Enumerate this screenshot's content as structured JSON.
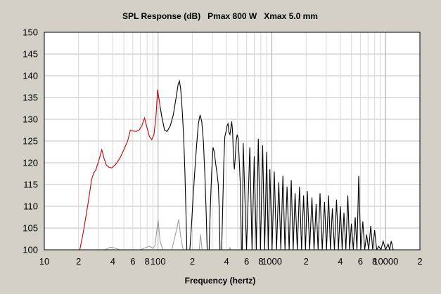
{
  "chart_data": {
    "type": "line",
    "title": "SPL Response (dB)   Pmax 800 W   Xmax 5.0 mm",
    "xlabel": "Frequency (hertz)",
    "ylabel": "",
    "x_scale": "log",
    "xlim": [
      10,
      20000
    ],
    "ylim": [
      100,
      150
    ],
    "grid": true,
    "legend": "none",
    "yticks": [
      100,
      105,
      110,
      115,
      120,
      125,
      130,
      135,
      140,
      145,
      150
    ],
    "xtick_labels": [
      {
        "value": 10,
        "label": "10"
      },
      {
        "value": 20,
        "label": "2"
      },
      {
        "value": 40,
        "label": "4"
      },
      {
        "value": 60,
        "label": "6"
      },
      {
        "value": 80,
        "label": "8"
      },
      {
        "value": 100,
        "label": "100"
      },
      {
        "value": 200,
        "label": "2"
      },
      {
        "value": 400,
        "label": "4"
      },
      {
        "value": 600,
        "label": "6"
      },
      {
        "value": 800,
        "label": "8"
      },
      {
        "value": 1000,
        "label": "1000"
      },
      {
        "value": 2000,
        "label": "2"
      },
      {
        "value": 4000,
        "label": "4"
      },
      {
        "value": 6000,
        "label": "6"
      },
      {
        "value": 8000,
        "label": "8"
      },
      {
        "value": 10000,
        "label": "10000"
      },
      {
        "value": 20000,
        "label": "2"
      }
    ],
    "series": [
      {
        "color": "#cc0000",
        "points": [
          [
            20.5,
            100
          ],
          [
            22,
            104
          ],
          [
            24,
            110
          ],
          [
            26,
            116
          ],
          [
            27,
            117.5
          ],
          [
            28.5,
            118.5
          ],
          [
            30.5,
            121
          ],
          [
            32,
            123
          ],
          [
            33.5,
            121
          ],
          [
            35,
            119.5
          ],
          [
            37,
            119
          ],
          [
            39,
            118.8
          ],
          [
            42,
            119.5
          ],
          [
            46,
            121
          ],
          [
            50,
            123
          ],
          [
            54,
            125
          ],
          [
            57,
            127.5
          ],
          [
            60,
            127.3
          ],
          [
            64,
            127.2
          ],
          [
            68,
            127.5
          ],
          [
            72,
            128.5
          ],
          [
            76,
            130.3
          ],
          [
            80,
            128
          ],
          [
            84,
            126
          ],
          [
            88,
            125.3
          ],
          [
            92,
            126.5
          ],
          [
            96,
            131
          ],
          [
            99,
            136.8
          ],
          [
            101,
            135.3
          ],
          [
            104,
            133
          ]
        ]
      },
      {
        "color": "#000000",
        "points": [
          [
            104,
            133
          ],
          [
            108,
            130.5
          ],
          [
            114,
            127.5
          ],
          [
            120,
            127.2
          ],
          [
            128,
            128.5
          ],
          [
            136,
            131
          ],
          [
            144,
            135
          ],
          [
            150,
            138
          ],
          [
            154,
            138.8
          ],
          [
            158,
            137
          ],
          [
            163,
            132
          ],
          [
            168,
            125.5
          ],
          [
            172,
            118
          ],
          [
            176,
            108
          ],
          [
            179,
            100
          ],
          [
            190,
            100
          ],
          [
            197,
            106
          ],
          [
            203,
            112
          ],
          [
            210,
            118
          ],
          [
            218,
            124
          ],
          [
            226,
            129
          ],
          [
            234,
            131
          ],
          [
            242,
            129.5
          ],
          [
            250,
            125
          ],
          [
            258,
            117
          ],
          [
            265,
            108
          ],
          [
            270,
            100
          ],
          [
            281,
            100
          ],
          [
            288,
            110
          ],
          [
            296,
            118
          ],
          [
            304,
            123.5
          ],
          [
            312,
            122.5
          ],
          [
            320,
            120
          ],
          [
            330,
            117.5
          ],
          [
            338,
            115
          ],
          [
            344,
            110
          ],
          [
            350,
            100
          ],
          [
            362,
            100
          ],
          [
            370,
            110
          ],
          [
            378,
            120
          ],
          [
            386,
            126
          ],
          [
            394,
            127
          ],
          [
            404,
            128.5
          ],
          [
            412,
            129
          ],
          [
            420,
            127
          ],
          [
            428,
            126.5
          ],
          [
            436,
            128
          ],
          [
            444,
            129.5
          ],
          [
            452,
            127
          ],
          [
            460,
            121
          ],
          [
            468,
            118.5
          ],
          [
            476,
            121
          ],
          [
            486,
            125
          ],
          [
            496,
            126.5
          ],
          [
            506,
            125.5
          ],
          [
            516,
            121
          ],
          [
            526,
            116
          ],
          [
            534,
            108
          ],
          [
            540,
            100
          ]
        ]
      },
      {
        "color": "#a0a0a0",
        "points": [
          [
            20,
            100
          ],
          [
            34,
            100
          ],
          [
            38,
            100.6
          ],
          [
            42,
            100.4
          ],
          [
            46,
            100
          ],
          [
            70,
            100
          ],
          [
            76,
            100.4
          ],
          [
            84,
            100.8
          ],
          [
            90,
            100.3
          ],
          [
            94,
            101
          ],
          [
            100,
            107
          ],
          [
            104,
            102
          ],
          [
            110,
            100
          ],
          [
            132,
            100
          ],
          [
            145,
            104.5
          ],
          [
            152,
            107
          ],
          [
            158,
            103
          ],
          [
            166,
            100
          ],
          [
            230,
            100
          ],
          [
            236,
            103.5
          ],
          [
            244,
            100
          ],
          [
            420,
            100
          ],
          [
            428,
            100.5
          ],
          [
            436,
            100
          ]
        ]
      }
    ],
    "dense_region": {
      "color": "#000000",
      "peaks": [
        [
          560,
          124.5
        ],
        [
          640,
          123.5
        ],
        [
          700,
          121.5
        ],
        [
          760,
          125.5
        ],
        [
          830,
          124
        ],
        [
          900,
          122.5
        ],
        [
          960,
          118.5
        ],
        [
          1050,
          118
        ],
        [
          1150,
          115.5
        ],
        [
          1250,
          117
        ],
        [
          1360,
          114.5
        ],
        [
          1480,
          116
        ],
        [
          1600,
          113
        ],
        [
          1750,
          114.5
        ],
        [
          1900,
          112.5
        ],
        [
          2050,
          113.5
        ],
        [
          2250,
          112
        ],
        [
          2450,
          110.5
        ],
        [
          2650,
          113
        ],
        [
          2900,
          111
        ],
        [
          3150,
          112.5
        ],
        [
          3400,
          109.5
        ],
        [
          3700,
          111.5
        ],
        [
          4000,
          110
        ],
        [
          4300,
          108.5
        ],
        [
          4650,
          112.5
        ],
        [
          5000,
          106
        ],
        [
          5400,
          107.5
        ],
        [
          5800,
          117
        ],
        [
          6300,
          106.5
        ],
        [
          6800,
          103.5
        ],
        [
          7400,
          105.5
        ],
        [
          8000,
          104.5
        ],
        [
          8700,
          100.8
        ],
        [
          9500,
          102
        ],
        [
          10500,
          101.3
        ],
        [
          11200,
          102
        ]
      ]
    }
  }
}
